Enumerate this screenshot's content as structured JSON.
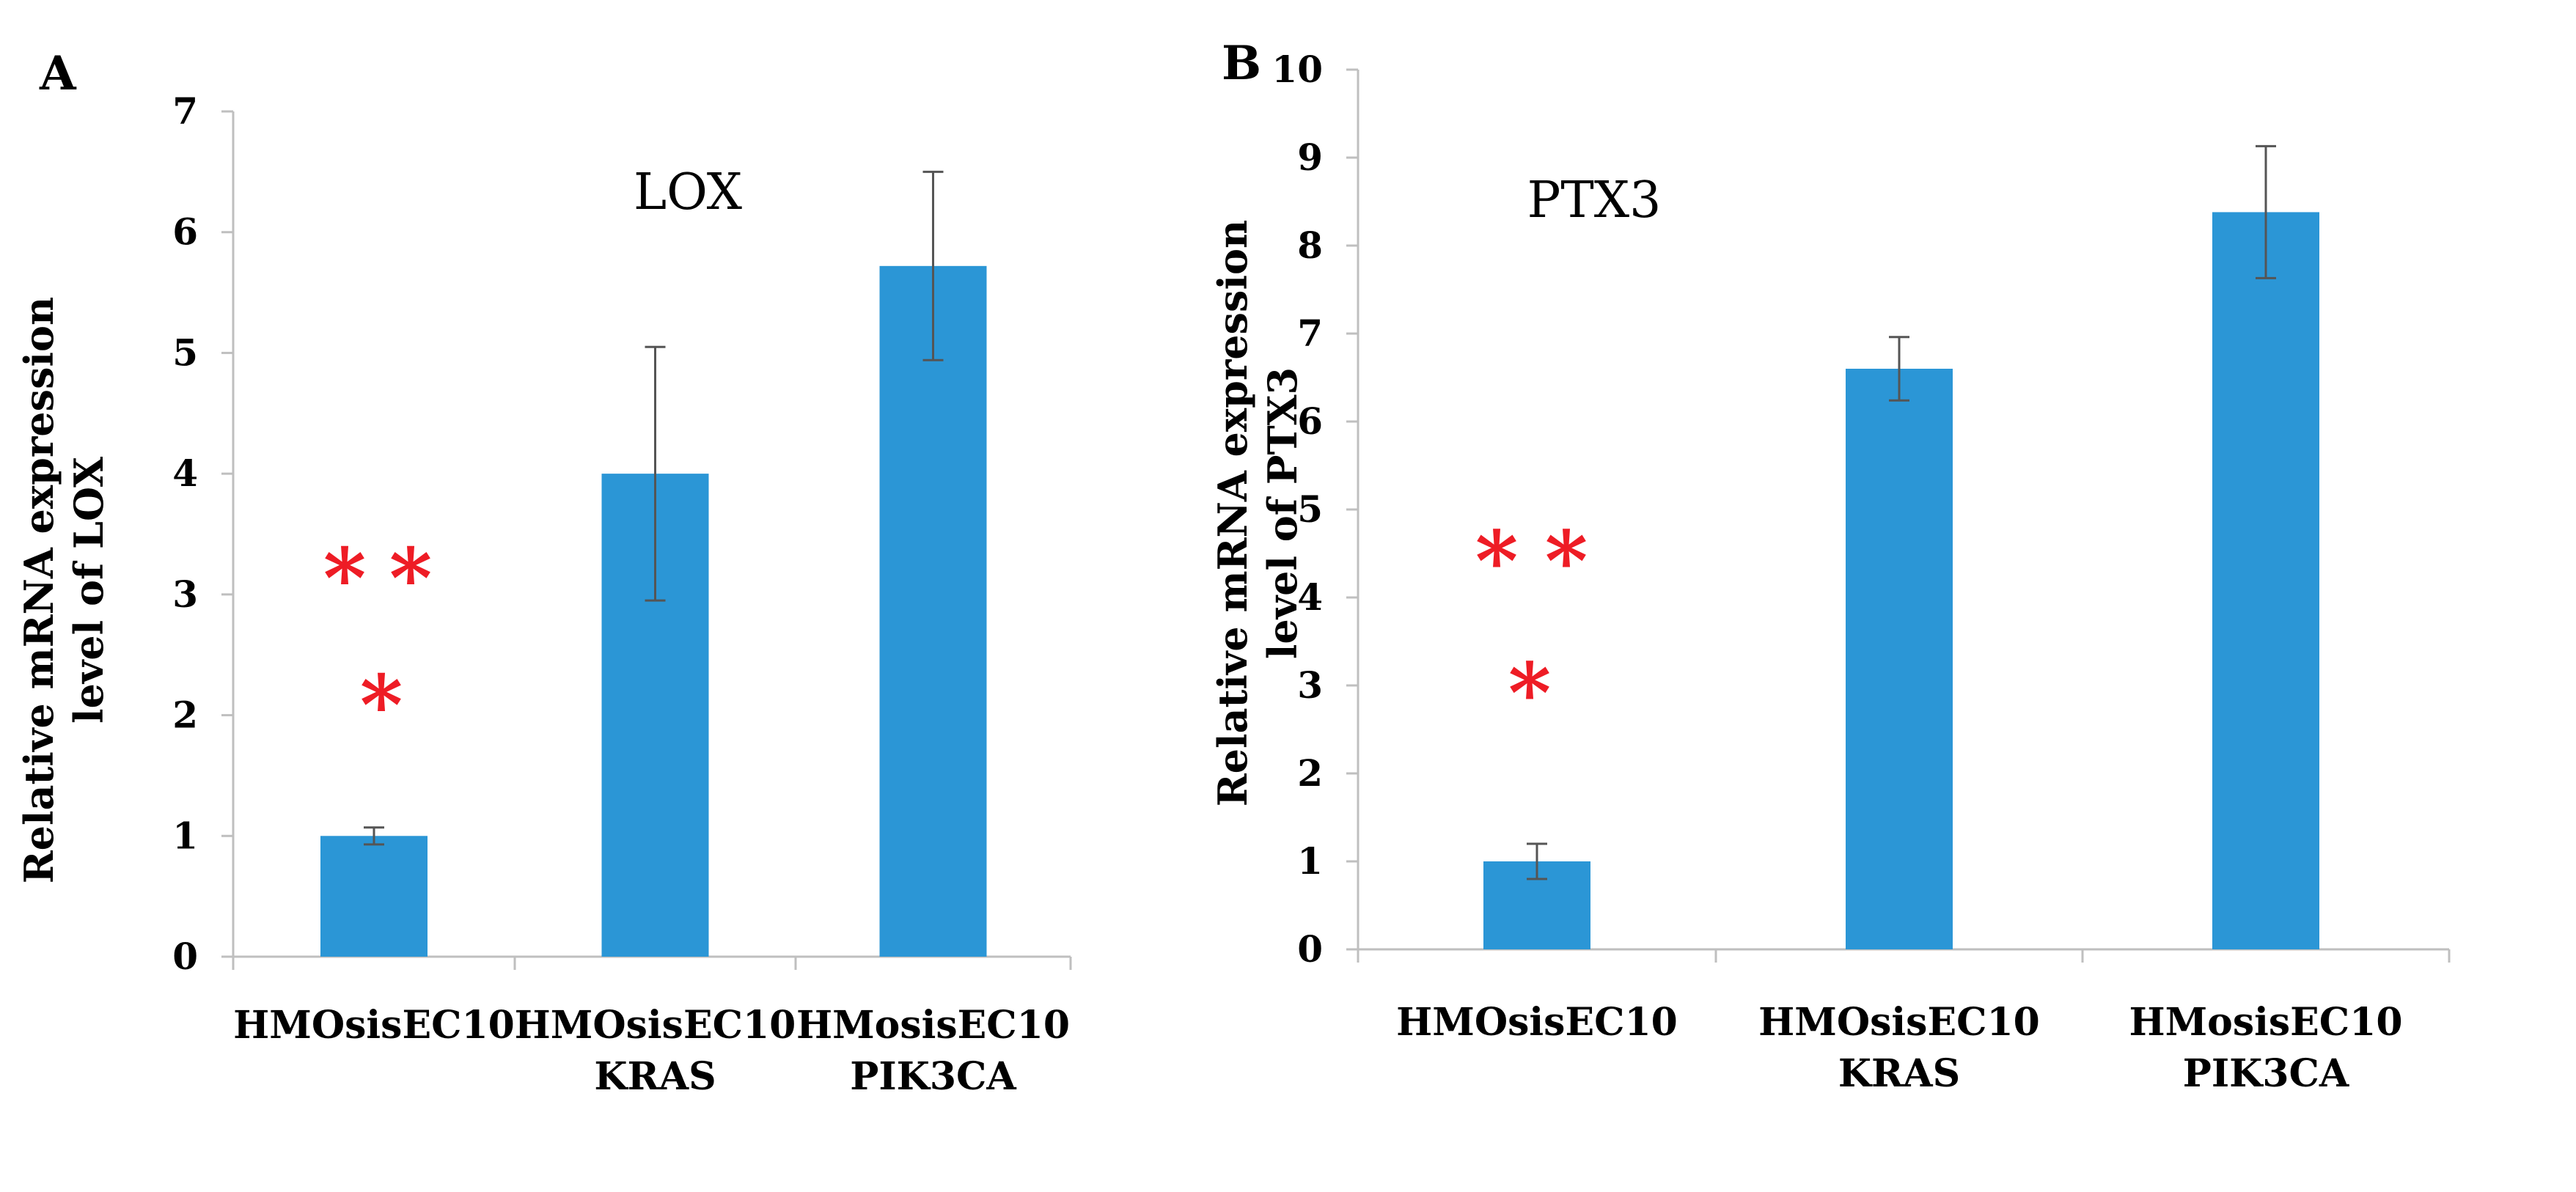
{
  "colors": {
    "bar": "#2b96d6",
    "axis": "#bfbfbf",
    "error_bar": "#555555",
    "significance": "#ee1c25",
    "text": "#000000"
  },
  "chart_data": [
    {
      "panel": "A",
      "type": "bar",
      "title": "LOX",
      "ylabel_lines": [
        "Relative mRNA expression",
        "level of LOX"
      ],
      "ylim": [
        0,
        7
      ],
      "yticks": [
        0,
        1,
        2,
        3,
        4,
        5,
        6,
        7
      ],
      "grid": false,
      "categories": [
        {
          "lines": [
            "HMOsisEC10"
          ]
        },
        {
          "lines": [
            "HMOsisEC10",
            "KRAS"
          ]
        },
        {
          "lines": [
            "HMosisEC10",
            "PIK3CA"
          ]
        }
      ],
      "values": [
        1.0,
        4.0,
        5.72
      ],
      "errors": [
        0.07,
        1.05,
        0.78
      ],
      "significance": {
        "category_index": 0,
        "marks": [
          "*",
          "*",
          "*"
        ],
        "level_values": [
          3.27,
          2.22
        ]
      }
    },
    {
      "panel": "B",
      "type": "bar",
      "title": "PTX3",
      "ylabel_lines": [
        "Relative mRNA expression",
        "level of PTX3"
      ],
      "ylim": [
        0,
        10
      ],
      "yticks": [
        0,
        1,
        2,
        3,
        4,
        5,
        6,
        7,
        8,
        9,
        10
      ],
      "grid": false,
      "categories": [
        {
          "lines": [
            "HMOsisEC10"
          ]
        },
        {
          "lines": [
            "HMOsisEC10",
            "KRAS"
          ]
        },
        {
          "lines": [
            "HMosisEC10",
            "PIK3CA"
          ]
        }
      ],
      "values": [
        1.0,
        6.6,
        8.38
      ],
      "errors": [
        0.2,
        0.36,
        0.75
      ],
      "significance": {
        "category_index": 0,
        "marks": [
          "*",
          "*",
          "*"
        ],
        "level_values": [
          4.6,
          3.1
        ]
      }
    }
  ]
}
